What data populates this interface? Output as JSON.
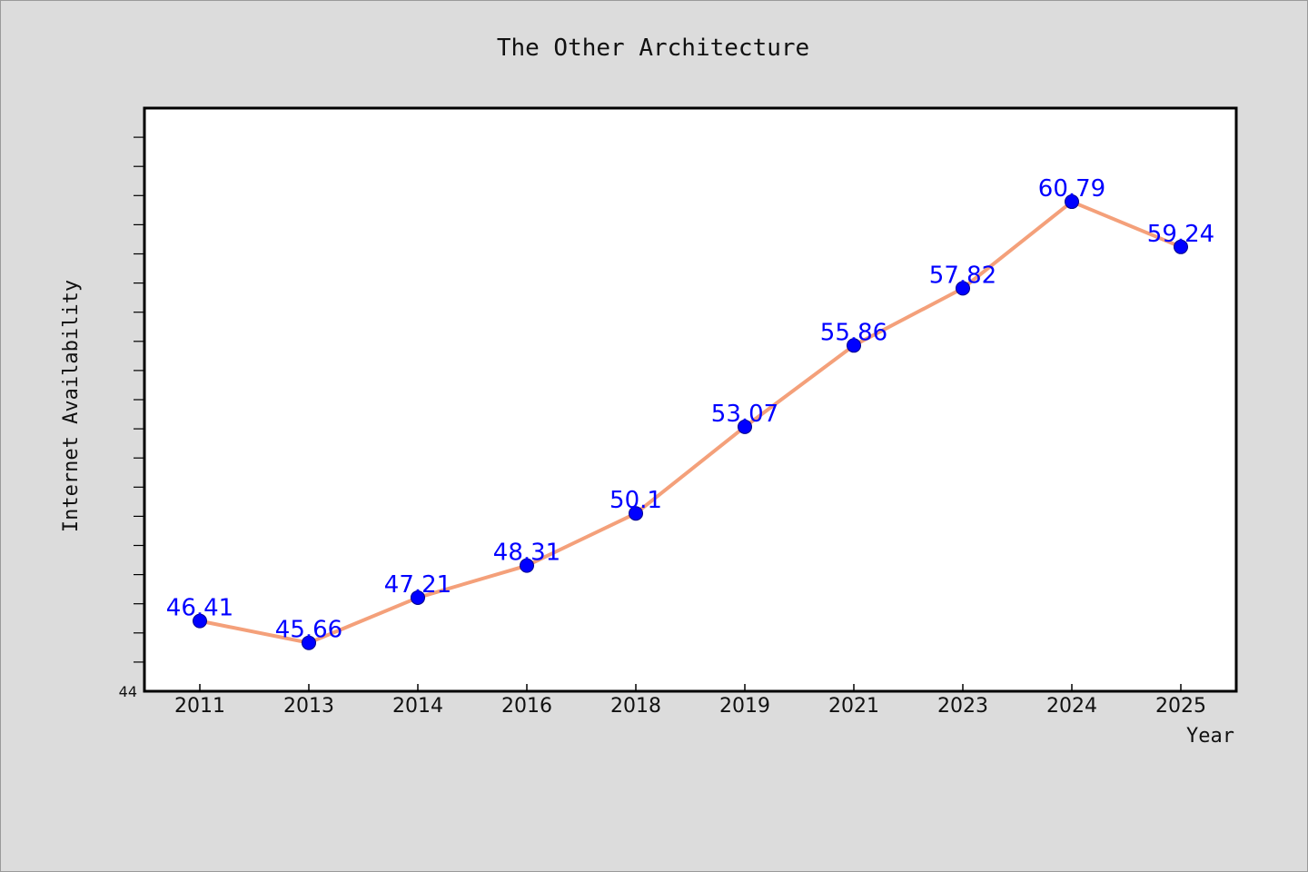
{
  "chart_data": {
    "type": "line",
    "title": "The Other Architecture",
    "xlabel": "Year",
    "ylabel": "Internet Availability",
    "categories": [
      "2011",
      "2013",
      "2014",
      "2016",
      "2018",
      "2019",
      "2021",
      "2023",
      "2024",
      "2025"
    ],
    "series": [
      {
        "values": [
          46.41,
          45.66,
          47.21,
          48.31,
          50.1,
          53.07,
          55.86,
          57.82,
          60.79,
          59.24
        ],
        "line_color": "#f4a07a",
        "marker_color": "#0000ff"
      }
    ],
    "data_labels": [
      "46.41",
      "45.66",
      "47.21",
      "48.31",
      "50.1",
      "53.07",
      "55.86",
      "57.82",
      "60.79",
      "59.24"
    ],
    "ylim": [
      44,
      64
    ],
    "y_tick_labels": [
      "44"
    ],
    "grid": false,
    "legend": "none",
    "colors": {
      "background": "#dcdcdc",
      "plot_background": "#ffffff",
      "line": "#f4a07a",
      "marker": "#0000ff",
      "data_label": "#0000ff"
    }
  }
}
